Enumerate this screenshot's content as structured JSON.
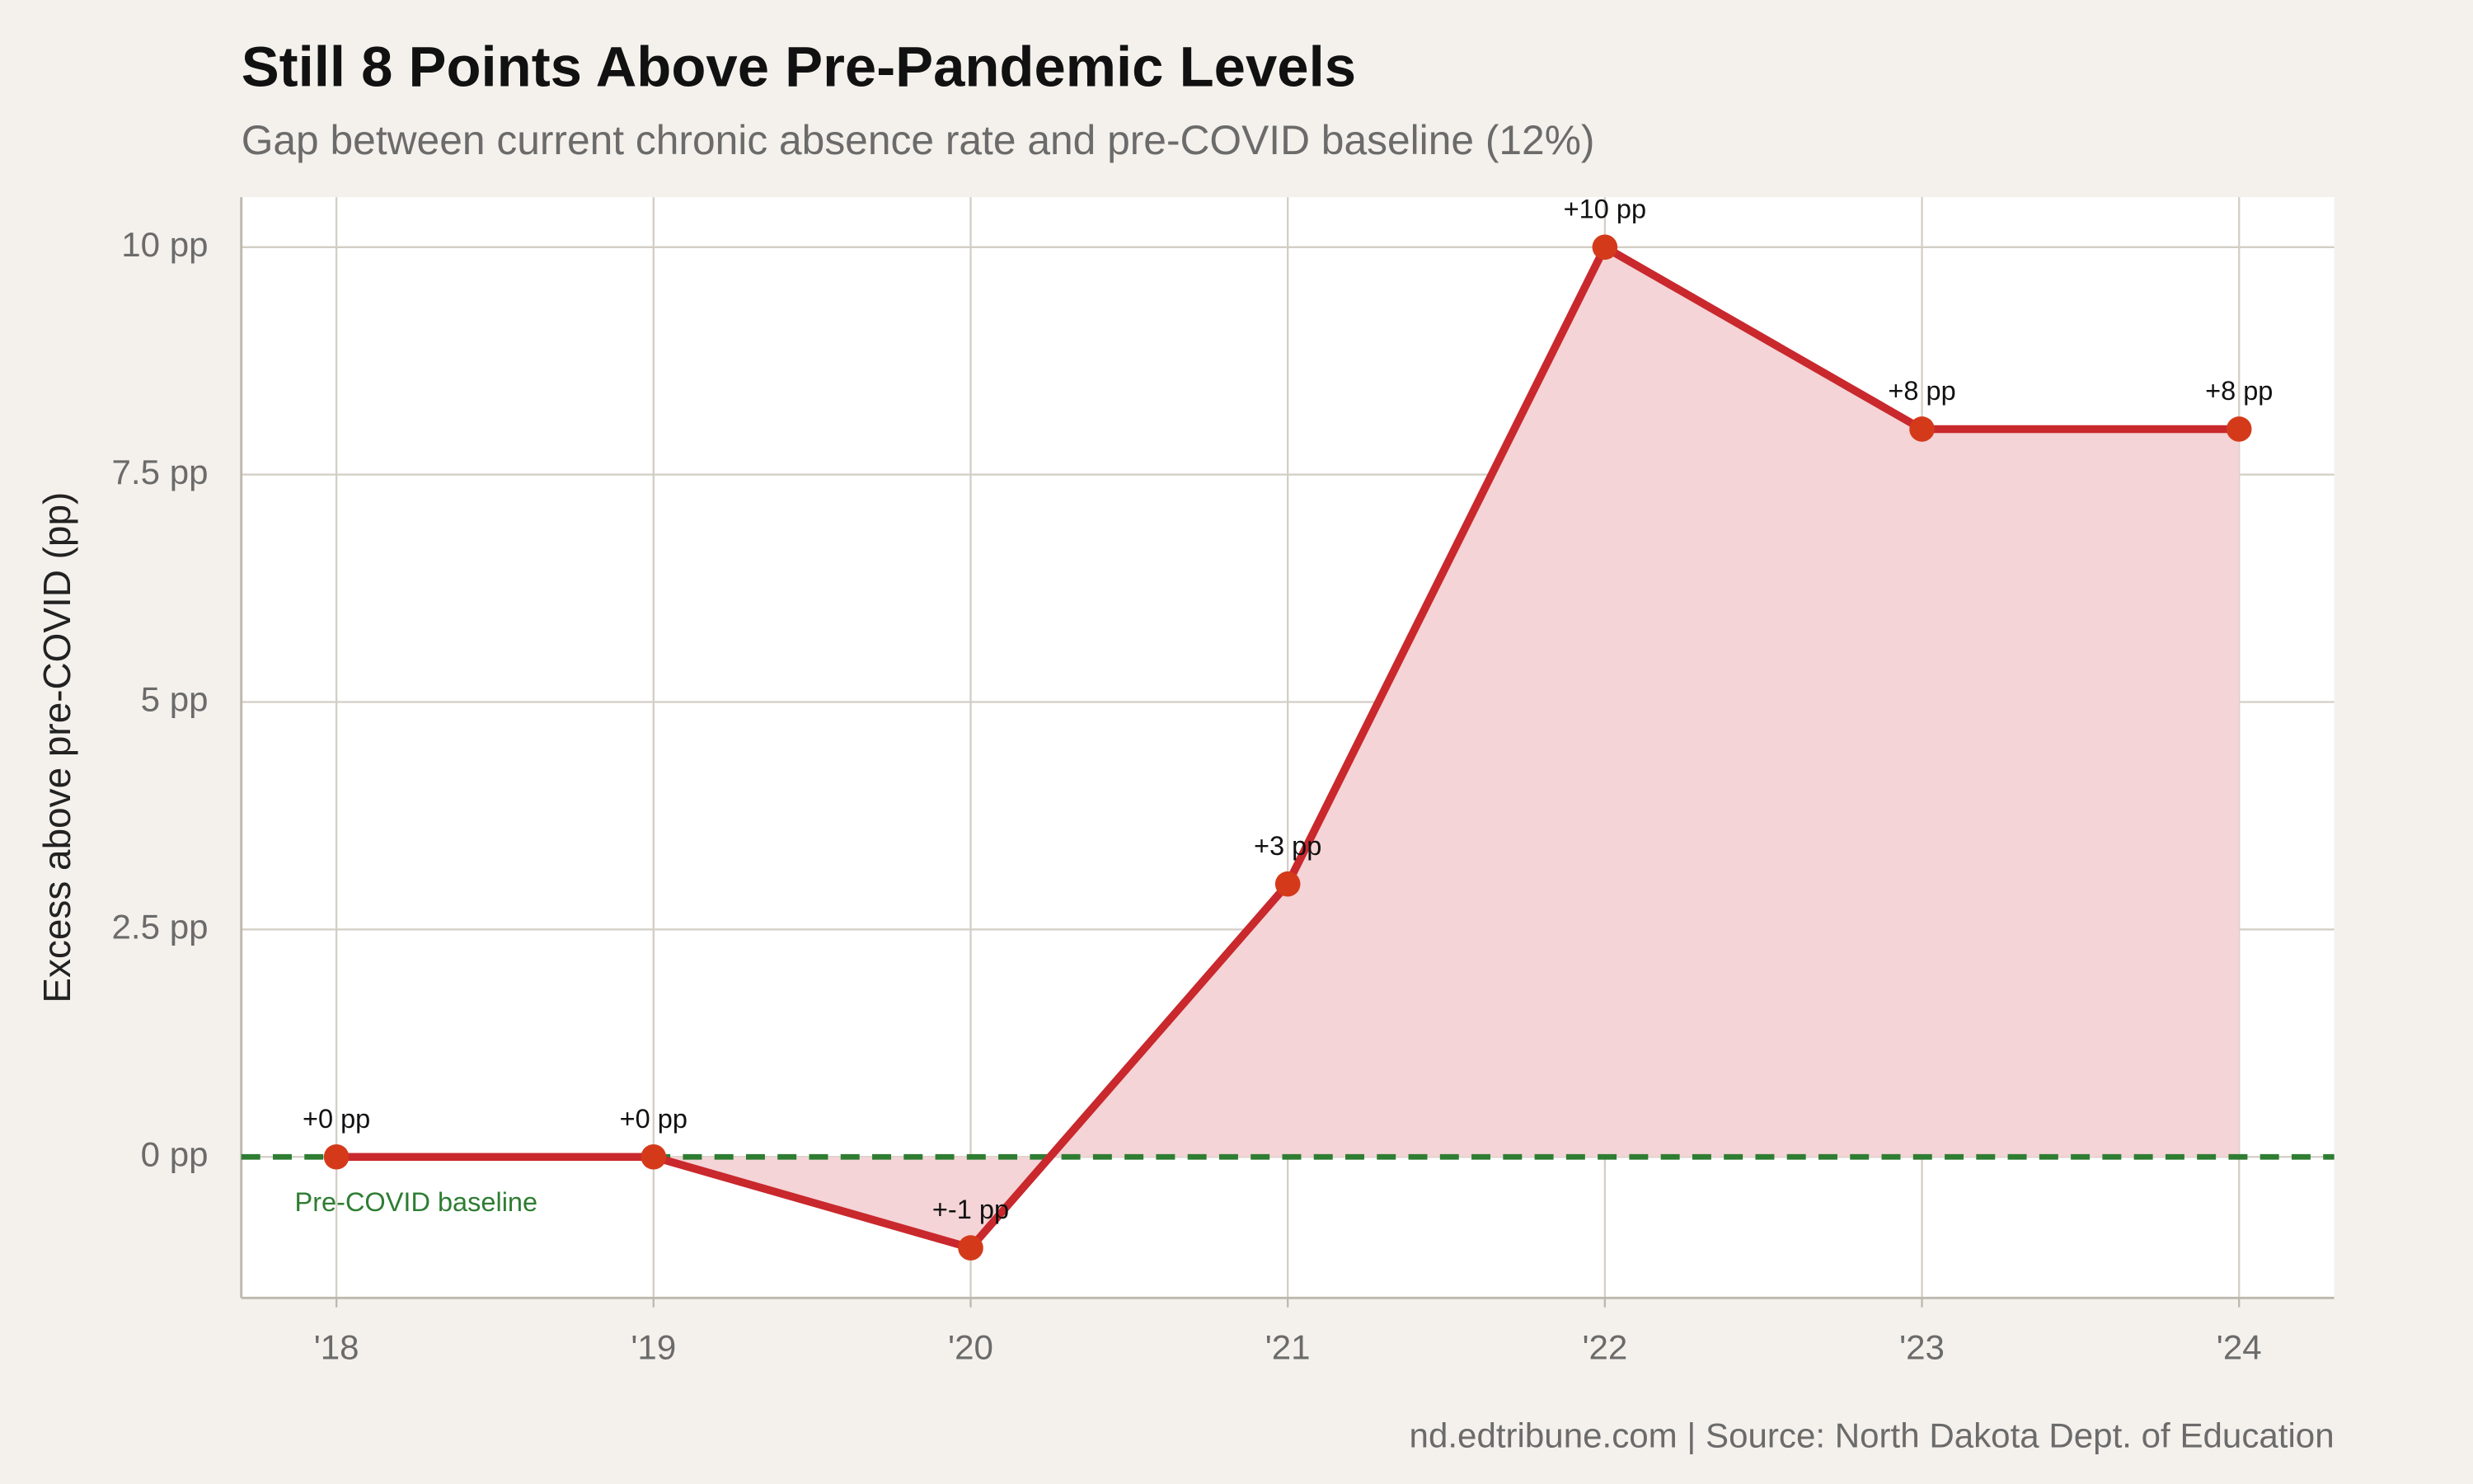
{
  "chart_data": {
    "type": "line",
    "title": "Still 8 Points Above Pre-Pandemic Levels",
    "subtitle": "Gap between current chronic absence rate and pre-COVID baseline (12%)",
    "y_label": "Excess above pre-COVID (pp)",
    "caption": "nd.edtribune.com | Source: North Dakota Dept. of Education",
    "categories": [
      "'18",
      "'19",
      "'20",
      "'21",
      "'22",
      "'23",
      "'24"
    ],
    "values": [
      0,
      0,
      -1,
      3,
      10,
      8,
      8
    ],
    "value_labels": [
      "+0 pp",
      "+0 pp",
      "+-1 pp",
      "+3 pp",
      "+10 pp",
      "+8 pp",
      "+8 pp"
    ],
    "color": "#c9282d",
    "marker_color": "#d43a1a",
    "fill_color": "#f4d4d6",
    "ylim": [
      -1.55,
      10.55
    ],
    "yticks": [
      {
        "value": 0,
        "label": "0 pp"
      },
      {
        "value": 2.5,
        "label": "2.5 pp"
      },
      {
        "value": 5,
        "label": "5 pp"
      },
      {
        "value": 7.5,
        "label": "7.5 pp"
      },
      {
        "value": 10,
        "label": "10 pp"
      }
    ],
    "grid": true,
    "baseline": {
      "value": 0,
      "label": "Pre-COVID baseline",
      "color": "#2e7d32"
    }
  }
}
